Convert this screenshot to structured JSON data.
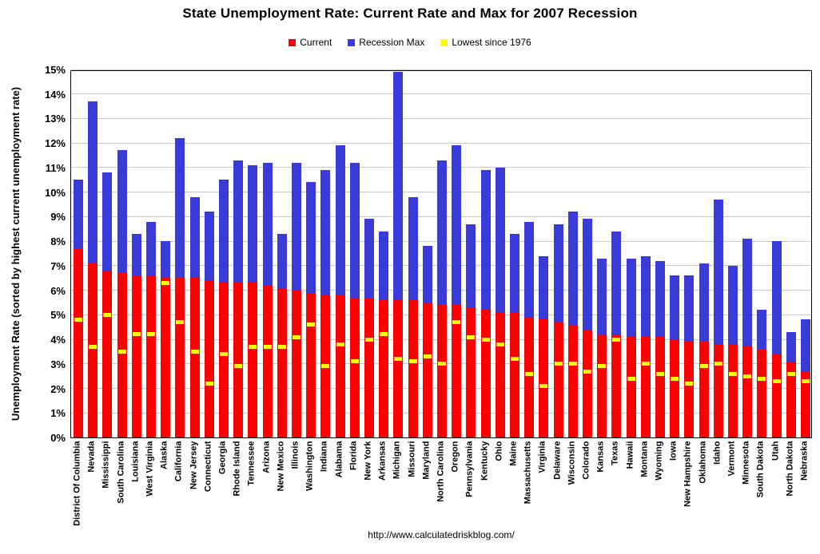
{
  "title": "State Unemployment Rate: Current Rate and Max for 2007 Recession",
  "ylabel": "Unemployment Rate (sorted by highest current unemployment rate)",
  "footer_url": "http://www.calculatedriskblog.com/",
  "legend": [
    {
      "label": "Current",
      "color": "#ff0000"
    },
    {
      "label": "Recession Max",
      "color": "#3b3bd9"
    },
    {
      "label": "Lowest since 1976",
      "color": "#ffff00"
    }
  ],
  "colors": {
    "current": "#ff0000",
    "recession_max": "#3b3bd9",
    "lowest_since_1976": "#ffff00",
    "gridline": "#c8c8c8",
    "axis": "#000000"
  },
  "chart_data": {
    "type": "bar",
    "title": "State Unemployment Rate: Current Rate and Max for 2007 Recession",
    "xlabel": "",
    "ylabel": "Unemployment Rate (sorted by highest current unemployment rate)",
    "ylim": [
      0,
      15
    ],
    "ytick_step": 1,
    "ytick_suffix": "%",
    "grid": true,
    "legend_position": "top",
    "categories": [
      "District Of Columbia",
      "Nevada",
      "Mississippi",
      "South Carolina",
      "Louisiana",
      "West Virginia",
      "Alaska",
      "California",
      "New Jersey",
      "Connecticut",
      "Georgia",
      "Rhode Island",
      "Tennessee",
      "Arizona",
      "New Mexico",
      "Illinois",
      "Washington",
      "Indiana",
      "Alabama",
      "Florida",
      "New York",
      "Arkansas",
      "Michigan",
      "Missouri",
      "Maryland",
      "North Carolina",
      "Oregon",
      "Pennsylvania",
      "Kentucky",
      "Ohio",
      "Maine",
      "Massachusetts",
      "Virginia",
      "Delaware",
      "Wisconsin",
      "Colorado",
      "Kansas",
      "Texas",
      "Hawaii",
      "Montana",
      "Wyoming",
      "Iowa",
      "New Hampshire",
      "Oklahoma",
      "Idaho",
      "Vermont",
      "Minnesota",
      "South Dakota",
      "Utah",
      "North Dakota",
      "Nebraska"
    ],
    "series": [
      {
        "name": "Current",
        "color": "#ff0000",
        "values": [
          7.7,
          7.1,
          6.8,
          6.7,
          6.6,
          6.6,
          6.5,
          6.5,
          6.5,
          6.4,
          6.3,
          6.3,
          6.3,
          6.2,
          6.1,
          6.0,
          5.9,
          5.8,
          5.8,
          5.7,
          5.7,
          5.6,
          5.6,
          5.6,
          5.5,
          5.4,
          5.4,
          5.3,
          5.2,
          5.1,
          5.1,
          4.9,
          4.8,
          4.7,
          4.6,
          4.4,
          4.2,
          4.2,
          4.1,
          4.1,
          4.1,
          4.0,
          3.9,
          3.9,
          3.8,
          3.8,
          3.7,
          3.6,
          3.4,
          3.1,
          2.7
        ]
      },
      {
        "name": "Recession Max",
        "color": "#3b3bd9",
        "values": [
          10.5,
          13.7,
          10.8,
          11.7,
          8.3,
          8.8,
          8.0,
          12.2,
          9.8,
          9.2,
          10.5,
          11.3,
          11.1,
          11.2,
          8.3,
          11.2,
          10.4,
          10.9,
          11.9,
          11.2,
          8.9,
          8.4,
          14.9,
          9.8,
          7.8,
          11.3,
          11.9,
          8.7,
          10.9,
          11.0,
          8.3,
          8.8,
          7.4,
          8.7,
          9.2,
          8.9,
          7.3,
          8.4,
          7.3,
          7.4,
          7.2,
          6.6,
          6.6,
          7.1,
          9.7,
          7.0,
          8.1,
          5.2,
          8.0,
          4.3,
          4.8
        ]
      },
      {
        "name": "Lowest since 1976",
        "color": "#ffff00",
        "values": [
          4.8,
          3.7,
          5.0,
          3.5,
          4.2,
          4.2,
          6.3,
          4.7,
          3.5,
          2.2,
          3.4,
          2.9,
          3.7,
          3.7,
          3.7,
          4.1,
          4.6,
          2.9,
          3.8,
          3.1,
          4.0,
          4.2,
          3.2,
          3.1,
          3.3,
          3.0,
          4.7,
          4.1,
          4.0,
          3.8,
          3.2,
          2.6,
          2.1,
          3.0,
          3.0,
          2.7,
          2.9,
          4.0,
          2.4,
          3.0,
          2.6,
          2.4,
          2.2,
          2.9,
          3.0,
          2.6,
          2.5,
          2.4,
          2.3,
          2.6,
          2.3
        ]
      }
    ]
  }
}
